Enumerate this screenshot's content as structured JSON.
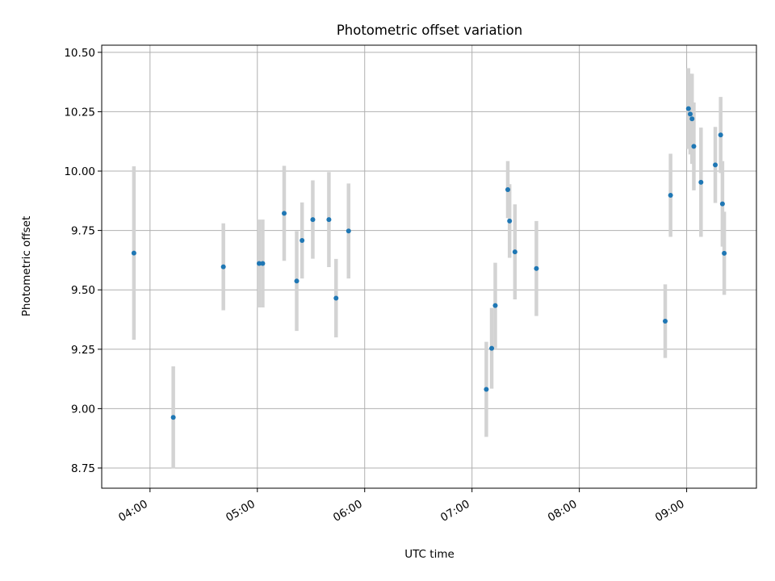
{
  "chart_data": {
    "type": "scatter",
    "title": "Photometric offset variation",
    "xlabel": "UTC time",
    "ylabel": "Photometric offset",
    "x_axis": "time",
    "xlim": [
      "03:33",
      "09:39"
    ],
    "ylim": [
      8.665,
      10.53
    ],
    "x_ticks": [
      "04:00",
      "05:00",
      "06:00",
      "07:00",
      "08:00",
      "09:00"
    ],
    "y_ticks": [
      8.75,
      9.0,
      9.25,
      9.5,
      9.75,
      10.0,
      10.25,
      10.5
    ],
    "y_tick_labels": [
      "8.75",
      "9.00",
      "9.25",
      "9.50",
      "9.75",
      "10.00",
      "10.25",
      "10.50"
    ],
    "grid": true,
    "marker_color": "#1f77b4",
    "errorbar_color": "#d3d3d3",
    "points": [
      {
        "x": "03:51",
        "y": 9.655,
        "err": 0.365
      },
      {
        "x": "04:13",
        "y": 8.963,
        "err": 0.215
      },
      {
        "x": "04:41",
        "y": 9.597,
        "err": 0.183
      },
      {
        "x": "05:01",
        "y": 9.611,
        "err": 0.185
      },
      {
        "x": "05:03",
        "y": 9.611,
        "err": 0.185
      },
      {
        "x": "05:15",
        "y": 9.822,
        "err": 0.2
      },
      {
        "x": "05:22",
        "y": 9.537,
        "err": 0.21
      },
      {
        "x": "05:25",
        "y": 9.708,
        "err": 0.16
      },
      {
        "x": "05:31",
        "y": 9.796,
        "err": 0.165
      },
      {
        "x": "05:40",
        "y": 9.796,
        "err": 0.2
      },
      {
        "x": "05:44",
        "y": 9.465,
        "err": 0.165
      },
      {
        "x": "05:51",
        "y": 9.748,
        "err": 0.2
      },
      {
        "x": "07:08",
        "y": 9.081,
        "err": 0.2
      },
      {
        "x": "07:11",
        "y": 9.254,
        "err": 0.17
      },
      {
        "x": "07:13",
        "y": 9.434,
        "err": 0.18
      },
      {
        "x": "07:20",
        "y": 9.922,
        "err": 0.12
      },
      {
        "x": "07:21",
        "y": 9.79,
        "err": 0.155
      },
      {
        "x": "07:24",
        "y": 9.66,
        "err": 0.2
      },
      {
        "x": "07:36",
        "y": 9.59,
        "err": 0.2
      },
      {
        "x": "08:48",
        "y": 9.368,
        "err": 0.155
      },
      {
        "x": "08:51",
        "y": 9.898,
        "err": 0.175
      },
      {
        "x": "09:01",
        "y": 10.263,
        "err": 0.17
      },
      {
        "x": "09:02",
        "y": 10.24,
        "err": 0.17
      },
      {
        "x": "09:03",
        "y": 10.22,
        "err": 0.19
      },
      {
        "x": "09:04",
        "y": 10.104,
        "err": 0.185
      },
      {
        "x": "09:08",
        "y": 9.953,
        "err": 0.23
      },
      {
        "x": "09:16",
        "y": 10.026,
        "err": 0.16
      },
      {
        "x": "09:19",
        "y": 10.152,
        "err": 0.16
      },
      {
        "x": "09:20",
        "y": 9.862,
        "err": 0.18
      },
      {
        "x": "09:21",
        "y": 9.654,
        "err": 0.175
      }
    ]
  }
}
